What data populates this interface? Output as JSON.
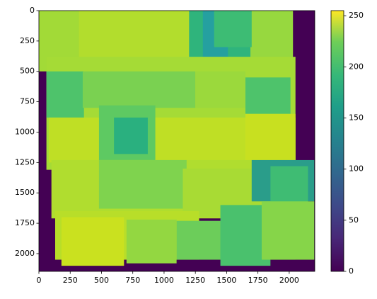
{
  "chart_data": {
    "type": "image",
    "colormap": "viridis",
    "xlim": [
      0,
      2204
    ],
    "ylim": [
      2146,
      0
    ],
    "xticks": [
      0,
      250,
      500,
      750,
      1000,
      1250,
      1500,
      1750,
      2000
    ],
    "yticks": [
      0,
      250,
      500,
      750,
      1000,
      1250,
      1500,
      1750,
      2000
    ],
    "clim": [
      0,
      255
    ],
    "cticks": [
      0,
      50,
      100,
      150,
      200,
      250
    ]
  }
}
